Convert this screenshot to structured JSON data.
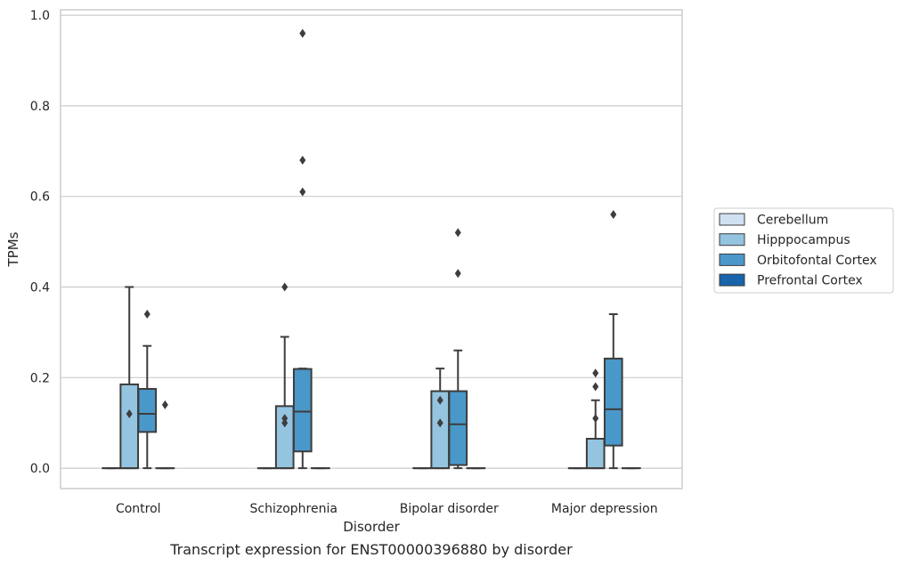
{
  "chart_data": {
    "type": "box",
    "title": "",
    "caption": "Transcript expression for ENST00000396880 by disorder",
    "xlabel": "Disorder",
    "ylabel": "TPMs",
    "ylim": [
      -0.045,
      1.012
    ],
    "yticks": [
      0.0,
      0.2,
      0.4,
      0.6,
      0.8,
      1.0
    ],
    "ytick_labels": [
      "0.0",
      "0.2",
      "0.4",
      "0.6",
      "0.8",
      "1.0"
    ],
    "categories": [
      "Control",
      "Schizophrenia",
      "Bipolar disorder",
      "Major depression"
    ],
    "grid": "horizontal",
    "legend_position": "right",
    "series": [
      {
        "name": "Cerebellum",
        "color": "#d0e1f2",
        "boxes": [
          {
            "q1": 0.0,
            "median": 0.0,
            "q3": 0.0,
            "whisker_low": 0.0,
            "whisker_high": 0.0,
            "outliers": []
          },
          {
            "q1": 0.0,
            "median": 0.0,
            "q3": 0.0,
            "whisker_low": 0.0,
            "whisker_high": 0.0,
            "outliers": []
          },
          {
            "q1": 0.0,
            "median": 0.0,
            "q3": 0.0,
            "whisker_low": 0.0,
            "whisker_high": 0.0,
            "outliers": []
          },
          {
            "q1": 0.0,
            "median": 0.0,
            "q3": 0.0,
            "whisker_low": 0.0,
            "whisker_high": 0.0,
            "outliers": []
          }
        ]
      },
      {
        "name": "Hipppocampus",
        "color": "#94c4df",
        "boxes": [
          {
            "q1": 0.0,
            "median": 0.0,
            "q3": 0.185,
            "whisker_low": 0.0,
            "whisker_high": 0.4,
            "outliers": [
              0.12
            ]
          },
          {
            "q1": 0.0,
            "median": 0.0,
            "q3": 0.137,
            "whisker_low": 0.0,
            "whisker_high": 0.29,
            "outliers": [
              0.11,
              0.1,
              0.4
            ]
          },
          {
            "q1": 0.0,
            "median": 0.0,
            "q3": 0.17,
            "whisker_low": 0.0,
            "whisker_high": 0.22,
            "outliers": [
              0.15,
              0.1
            ]
          },
          {
            "q1": 0.0,
            "median": 0.0,
            "q3": 0.065,
            "whisker_low": 0.0,
            "whisker_high": 0.15,
            "outliers": [
              0.11,
              0.18,
              0.21
            ]
          }
        ]
      },
      {
        "name": "Orbitofontal Cortex",
        "color": "#4a98c9",
        "boxes": [
          {
            "q1": 0.08,
            "median": 0.12,
            "q3": 0.175,
            "whisker_low": 0.0,
            "whisker_high": 0.27,
            "outliers": [
              0.34
            ]
          },
          {
            "q1": 0.037,
            "median": 0.125,
            "q3": 0.219,
            "whisker_low": 0.0,
            "whisker_high": 0.22,
            "outliers": [
              0.61,
              0.68,
              0.96
            ]
          },
          {
            "q1": 0.007,
            "median": 0.097,
            "q3": 0.17,
            "whisker_low": 0.0,
            "whisker_high": 0.26,
            "outliers": [
              0.43,
              0.52
            ]
          },
          {
            "q1": 0.05,
            "median": 0.13,
            "q3": 0.242,
            "whisker_low": 0.0,
            "whisker_high": 0.34,
            "outliers": [
              0.56
            ]
          }
        ]
      },
      {
        "name": "Prefrontal Cortex",
        "color": "#1764ab",
        "boxes": [
          {
            "q1": 0.0,
            "median": 0.0,
            "q3": 0.0,
            "whisker_low": 0.0,
            "whisker_high": 0.0,
            "outliers": [
              0.14
            ]
          },
          {
            "q1": 0.0,
            "median": 0.0,
            "q3": 0.0,
            "whisker_low": 0.0,
            "whisker_high": 0.0,
            "outliers": []
          },
          {
            "q1": 0.0,
            "median": 0.0,
            "q3": 0.0,
            "whisker_low": 0.0,
            "whisker_high": 0.0,
            "outliers": []
          },
          {
            "q1": 0.0,
            "median": 0.0,
            "q3": 0.0,
            "whisker_low": 0.0,
            "whisker_high": 0.0,
            "outliers": []
          }
        ]
      }
    ]
  },
  "style": {
    "grid_color": "#cccccc",
    "frame_color": "#cccccc",
    "line_color": "#3d3d3d"
  }
}
